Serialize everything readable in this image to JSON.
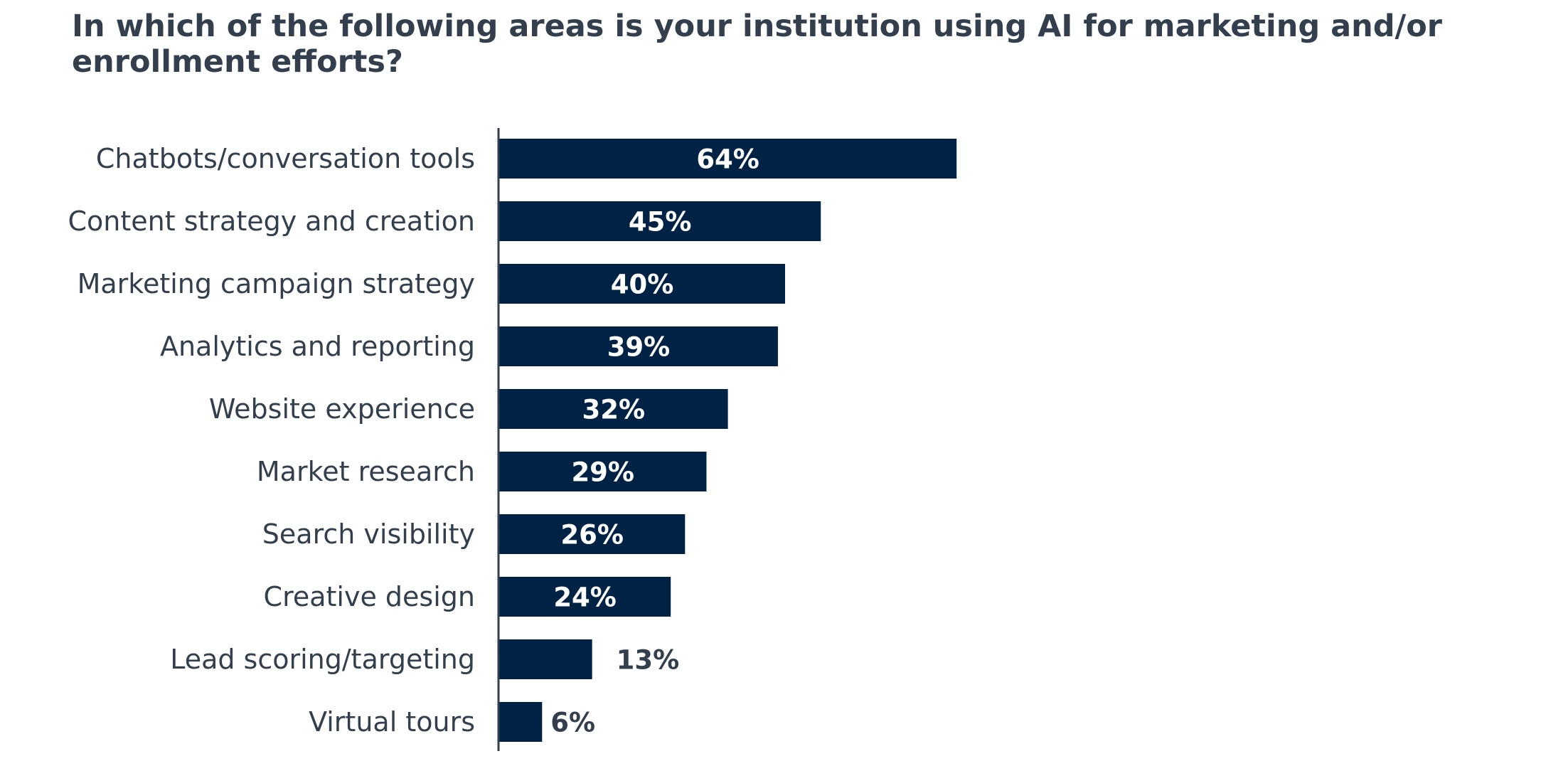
{
  "chart_data": {
    "type": "bar",
    "orientation": "horizontal",
    "title": "In which of the following areas is your institution using AI for marketing and/or enrollment efforts?",
    "categories": [
      "Chatbots/conversation tools",
      "Content strategy and creation",
      "Marketing campaign strategy",
      "Analytics and reporting",
      "Website experience",
      "Market research",
      "Search visibility",
      "Creative design",
      "Lead scoring/targeting",
      "Virtual tours"
    ],
    "values": [
      64,
      45,
      40,
      39,
      32,
      29,
      26,
      24,
      13,
      6
    ],
    "value_labels": [
      "64%",
      "45%",
      "40%",
      "39%",
      "32%",
      "29%",
      "26%",
      "24%",
      "13%",
      "6%"
    ],
    "unit": "%",
    "xlim": [
      0,
      100
    ],
    "grid": false,
    "legend": "none",
    "colors": {
      "bar": "#002244",
      "label_inside": "#ffffff",
      "label_outside": "#333f4c",
      "text": "#333f4c",
      "axis": "#333f4c"
    }
  }
}
